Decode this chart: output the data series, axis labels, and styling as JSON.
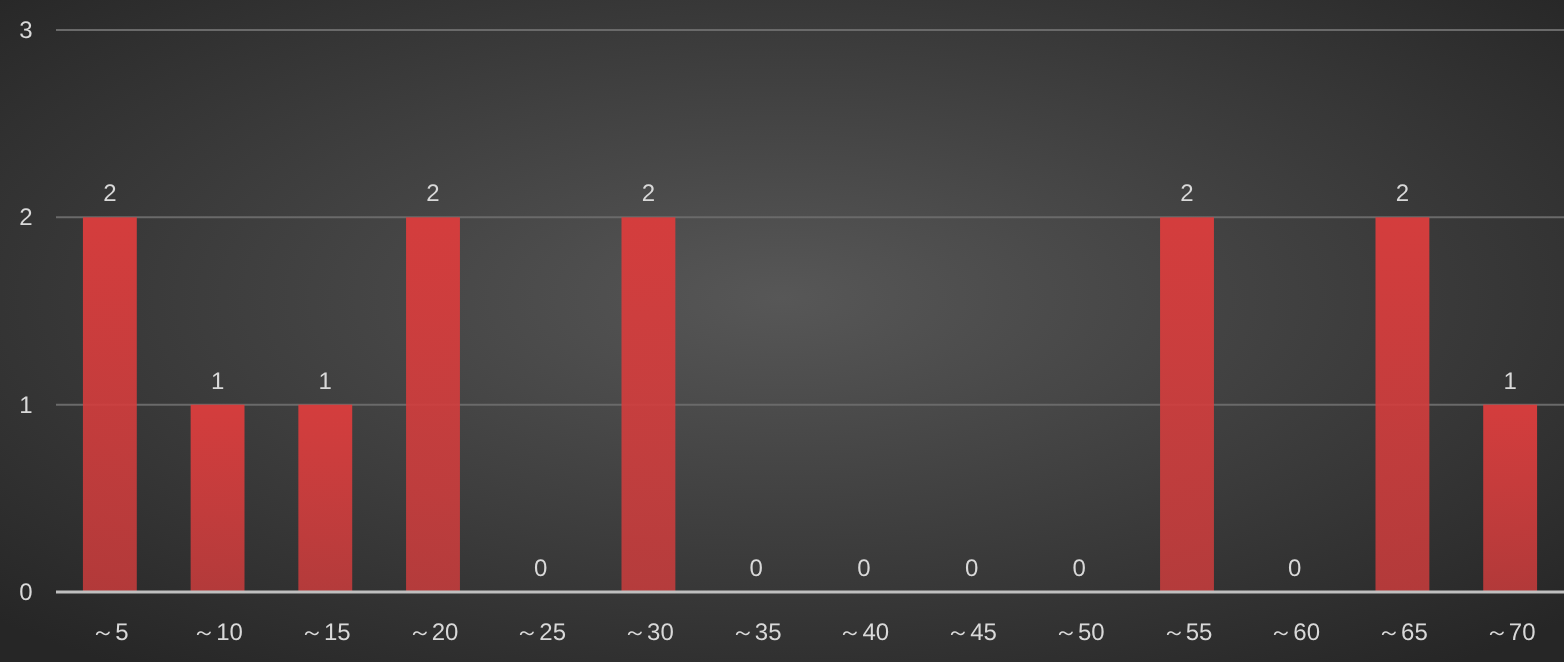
{
  "chart_data": {
    "type": "bar",
    "categories": [
      "～5",
      "～10",
      "～15",
      "～20",
      "～25",
      "～30",
      "～35",
      "～40",
      "～45",
      "～50",
      "～55",
      "～60",
      "～65",
      "～70"
    ],
    "values": [
      2,
      1,
      1,
      2,
      0,
      2,
      0,
      0,
      0,
      0,
      2,
      0,
      2,
      1
    ],
    "color": "#d43d3d",
    "ylim": [
      0,
      3
    ],
    "yticks": [
      0,
      1,
      2,
      3
    ],
    "grid": "y",
    "data_labels": true
  }
}
